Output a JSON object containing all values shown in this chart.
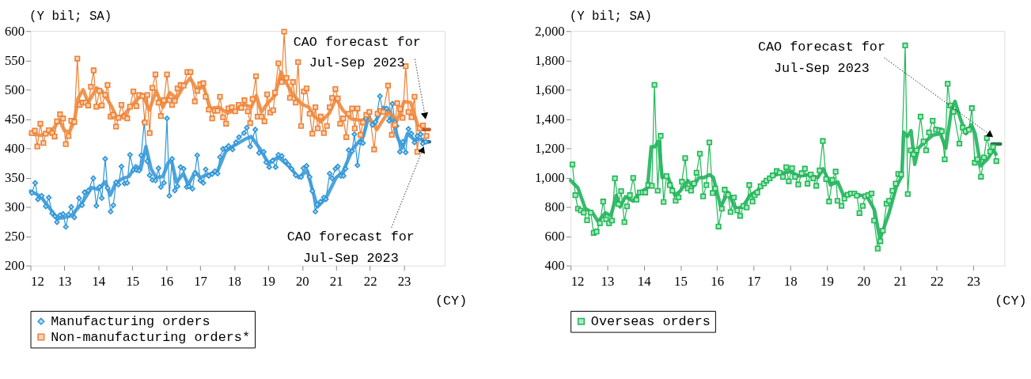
{
  "chart_data": [
    {
      "type": "line",
      "xlabel": "(CY)",
      "ylabel": "(Y bil; SA)",
      "xlim": [
        12,
        24.2
      ],
      "ylim": [
        200,
        600
      ],
      "xticks": [
        12,
        13,
        14,
        15,
        16,
        17,
        18,
        19,
        20,
        21,
        22,
        23
      ],
      "yticks": [
        200,
        250,
        300,
        350,
        400,
        450,
        500,
        550,
        600
      ],
      "grid": false,
      "legend": "bottom",
      "annotations": [
        {
          "text": "CAO forecast for\nJul-Sep 2023",
          "x": 23.62,
          "y": 455
        },
        {
          "text": "CAO forecast for\nJul-Sep 2023",
          "x": 23.55,
          "y": 398
        }
      ],
      "series": [
        {
          "name": "Manufacturing orders",
          "color": "#2e95d8",
          "marker": "diamond",
          "x": [
            12.04,
            12.14,
            12.22,
            12.33,
            12.45,
            12.54,
            12.64,
            12.72,
            12.78,
            12.87,
            12.96,
            13.04,
            13.12,
            13.2,
            13.29,
            13.43,
            13.52,
            13.59,
            13.7,
            13.85,
            13.94,
            14.03,
            14.1,
            14.2,
            14.27,
            14.36,
            14.44,
            14.52,
            14.59,
            14.68,
            14.77,
            14.85,
            14.93,
            15.03,
            15.12,
            15.2,
            15.26,
            15.35,
            15.44,
            15.51,
            15.59,
            15.68,
            15.77,
            15.84,
            15.93,
            16.02,
            16.09,
            16.17,
            16.25,
            16.33,
            16.42,
            16.51,
            16.6,
            16.67,
            16.77,
            16.84,
            16.91,
            17.0,
            17.09,
            17.16,
            17.25,
            17.35,
            17.43,
            17.51,
            17.58,
            17.67,
            17.76,
            17.83,
            17.95,
            18.05,
            18.14,
            18.29,
            18.37,
            18.47,
            18.62,
            18.73,
            18.87,
            18.94,
            19.03,
            19.13,
            19.22,
            19.3,
            19.4,
            19.51,
            19.6,
            19.69,
            19.81,
            19.97,
            20.04,
            20.13,
            20.22,
            20.3,
            20.39,
            20.44,
            20.54,
            20.64,
            20.7,
            20.81,
            20.88,
            20.98,
            21.05,
            21.14,
            21.22,
            21.28,
            21.37,
            21.47,
            21.54,
            21.63,
            21.72,
            21.79,
            21.88,
            21.98,
            22.07,
            22.16,
            22.29,
            22.37,
            22.49,
            22.56,
            22.66,
            22.73,
            22.78,
            22.88,
            22.96,
            23.05,
            23.13,
            23.22,
            23.31,
            23.39,
            23.49,
            23.55,
            23.64
          ],
          "values": [
            324,
            341,
            313,
            319,
            301,
            316,
            289,
            284,
            274,
            286,
            288,
            266,
            287,
            300,
            282,
            315,
            303,
            325,
            328,
            349,
            302,
            334,
            315,
            382,
            332,
            292,
            303,
            342,
            338,
            369,
            340,
            341,
            389,
            363,
            363,
            362,
            388,
            445,
            378,
            354,
            346,
            345,
            366,
            334,
            341,
            451,
            319,
            382,
            328,
            335,
            368,
            365,
            334,
            335,
            331,
            357,
            388,
            345,
            341,
            364,
            353,
            356,
            361,
            357,
            385,
            399,
            400,
            404,
            398,
            410,
            419,
            426,
            435,
            403,
            432,
            392,
            394,
            376,
            368,
            379,
            368,
            389,
            387,
            378,
            372,
            365,
            354,
            351,
            366,
            370,
            351,
            327,
            292,
            304,
            309,
            316,
            313,
            357,
            349,
            365,
            369,
            353,
            353,
            365,
            397,
            395,
            424,
            371,
            410,
            409,
            451,
            462,
            440,
            445,
            489,
            463,
            468,
            447,
            476,
            445,
            438,
            394,
            411,
            393,
            433,
            425,
            410,
            421,
            424,
            408,
            411
          ]
        },
        {
          "name": "Non-manufacturing orders*",
          "color": "#ee8033",
          "marker": "square",
          "x": [
            12.04,
            12.13,
            12.2,
            12.29,
            12.38,
            12.45,
            12.54,
            12.64,
            12.71,
            12.78,
            12.87,
            12.96,
            13.04,
            13.12,
            13.2,
            13.29,
            13.38,
            13.45,
            13.54,
            13.62,
            13.7,
            13.78,
            13.86,
            13.94,
            14.03,
            14.1,
            14.2,
            14.27,
            14.36,
            14.44,
            14.52,
            14.59,
            14.68,
            14.77,
            14.85,
            14.93,
            15.03,
            15.12,
            15.2,
            15.3,
            15.37,
            15.44,
            15.51,
            15.59,
            15.68,
            15.77,
            15.84,
            15.93,
            16.02,
            16.09,
            16.17,
            16.25,
            16.33,
            16.42,
            16.51,
            16.62,
            16.71,
            16.84,
            16.91,
            17.0,
            17.09,
            17.16,
            17.25,
            17.35,
            17.43,
            17.51,
            17.58,
            17.67,
            17.76,
            17.83,
            17.93,
            18.03,
            18.13,
            18.21,
            18.3,
            18.4,
            18.47,
            18.54,
            18.64,
            18.69,
            18.8,
            18.89,
            18.97,
            19.06,
            19.15,
            19.2,
            19.3,
            19.4,
            19.47,
            19.54,
            19.64,
            19.73,
            19.81,
            19.88,
            19.97,
            20.05,
            20.13,
            20.22,
            20.3,
            20.39,
            20.46,
            20.55,
            20.64,
            20.73,
            20.81,
            20.88,
            20.98,
            21.05,
            21.12,
            21.21,
            21.3,
            21.37,
            21.47,
            21.55,
            21.63,
            21.72,
            21.79,
            21.89,
            21.98,
            22.12,
            22.22,
            22.31,
            22.39,
            22.53,
            22.64,
            22.73,
            22.8,
            22.89,
            22.96,
            23.05,
            23.13,
            23.22,
            23.31,
            23.39,
            23.46,
            23.56,
            23.66
          ],
          "values": [
            426,
            430,
            403,
            442,
            409,
            425,
            431,
            426,
            420,
            446,
            458,
            451,
            407,
            421,
            447,
            445,
            553,
            474,
            478,
            478,
            473,
            505,
            533,
            471,
            498,
            473,
            491,
            508,
            454,
            457,
            437,
            452,
            474,
            454,
            451,
            471,
            497,
            472,
            491,
            489,
            444,
            491,
            426,
            503,
            526,
            478,
            455,
            482,
            526,
            482,
            474,
            481,
            502,
            508,
            507,
            530,
            530,
            480,
            498,
            509,
            511,
            488,
            466,
            451,
            464,
            464,
            488,
            453,
            442,
            468,
            470,
            463,
            474,
            469,
            482,
            463,
            443,
            484,
            523,
            454,
            454,
            446,
            492,
            461,
            465,
            495,
            545,
            513,
            599,
            520,
            486,
            513,
            478,
            547,
            438,
            497,
            502,
            459,
            425,
            470,
            434,
            454,
            426,
            438,
            470,
            486,
            501,
            485,
            442,
            451,
            419,
            459,
            468,
            434,
            468,
            423,
            444,
            457,
            462,
            398,
            459,
            464,
            462,
            507,
            423,
            440,
            477,
            467,
            452,
            540,
            462,
            453,
            488,
            394,
            434,
            439,
            421
          ]
        },
        {
          "color": "#3a9ad9",
          "marker": "none",
          "x": [
            12.0,
            12.3,
            12.6,
            12.8,
            13.0,
            13.2,
            13.5,
            13.8,
            14.0,
            14.2,
            14.35,
            14.5,
            14.7,
            14.9,
            15.1,
            15.25,
            15.4,
            15.55,
            15.7,
            15.9,
            16.05,
            16.15,
            16.3,
            16.5,
            16.65,
            16.85,
            17.0,
            17.2,
            17.5,
            17.75,
            18.0,
            18.3,
            18.5,
            18.75,
            19.0,
            19.3,
            19.6,
            19.9,
            20.15,
            20.3,
            20.45,
            20.7,
            21.0,
            21.2,
            21.5,
            21.8,
            21.95,
            22.1,
            22.4,
            22.6,
            22.8,
            22.95,
            23.1,
            23.3,
            23.55
          ],
          "values": [
            327,
            318,
            295,
            280,
            282,
            285,
            305,
            333,
            330,
            343,
            320,
            340,
            348,
            352,
            370,
            365,
            403,
            365,
            350,
            352,
            375,
            380,
            342,
            357,
            338,
            360,
            350,
            355,
            360,
            395,
            405,
            415,
            420,
            400,
            375,
            385,
            370,
            350,
            362,
            330,
            300,
            315,
            350,
            360,
            400,
            420,
            452,
            440,
            470,
            462,
            420,
            400,
            425,
            415,
            415
          ]
        },
        {
          "color": "#ef8a3d",
          "marker": "none",
          "x": [
            12.0,
            12.3,
            12.6,
            12.85,
            13.0,
            13.15,
            13.3,
            13.4,
            13.55,
            13.7,
            13.95,
            14.1,
            14.25,
            14.4,
            14.55,
            14.8,
            15.05,
            15.3,
            15.5,
            15.7,
            15.9,
            16.1,
            16.3,
            16.5,
            16.7,
            16.9,
            17.1,
            17.3,
            17.55,
            17.8,
            18.05,
            18.3,
            18.5,
            18.65,
            18.8,
            19.0,
            19.2,
            19.38,
            19.55,
            19.75,
            20.0,
            20.2,
            20.35,
            20.55,
            20.8,
            21.0,
            21.2,
            21.45,
            21.7,
            22.0,
            22.2,
            22.4,
            22.55,
            22.8,
            23.0,
            23.2,
            23.4,
            23.55
          ],
          "values": [
            425,
            422,
            428,
            448,
            430,
            428,
            448,
            485,
            500,
            478,
            503,
            498,
            485,
            470,
            450,
            460,
            478,
            492,
            465,
            498,
            470,
            495,
            485,
            505,
            520,
            500,
            505,
            468,
            470,
            460,
            465,
            475,
            470,
            490,
            462,
            478,
            490,
            530,
            510,
            490,
            475,
            470,
            455,
            445,
            460,
            485,
            465,
            450,
            448,
            450,
            432,
            450,
            462,
            448,
            480,
            478,
            440,
            432
          ]
        },
        {
          "color": "#1f5f8a",
          "marker": "none",
          "x": [
            23.56,
            23.75
          ],
          "values": [
            411,
            411
          ]
        },
        {
          "color": "#b8501a",
          "marker": "none",
          "x": [
            23.56,
            23.75
          ],
          "values": [
            432,
            432
          ]
        }
      ]
    },
    {
      "type": "line",
      "xlabel": "(CY)",
      "ylabel": "(Y bil; SA)",
      "xlim": [
        12,
        23.85
      ],
      "ylim": [
        400,
        2000
      ],
      "xticks": [
        12,
        13,
        14,
        15,
        16,
        17,
        18,
        19,
        20,
        21,
        22,
        23
      ],
      "yticks": [
        400,
        600,
        800,
        {
          "value": 1000,
          "label": "1,000"
        },
        {
          "value": 1200,
          "label": "1,200"
        },
        {
          "value": 1400,
          "label": "1,400"
        },
        {
          "value": 1600,
          "label": "1,600"
        },
        {
          "value": 1800,
          "label": "1,800"
        },
        {
          "value": 2000,
          "label": "2,000"
        }
      ],
      "grid": false,
      "legend": "bottom",
      "annotations": [
        {
          "text": "CAO forecast for\nJul-Sep 2023",
          "x": 23.47,
          "y": 1290
        }
      ],
      "series": [
        {
          "name": "Overseas orders",
          "color": "#1db954",
          "marker": "square",
          "x": [
            12.05,
            12.13,
            12.2,
            12.28,
            12.36,
            12.45,
            12.55,
            12.63,
            12.71,
            12.8,
            12.89,
            12.97,
            13.05,
            13.13,
            13.21,
            13.31,
            13.38,
            13.47,
            13.54,
            13.62,
            13.71,
            13.8,
            13.89,
            13.97,
            14.04,
            14.12,
            14.22,
            14.29,
            14.38,
            14.46,
            14.54,
            14.62,
            14.71,
            14.78,
            14.87,
            14.95,
            15.04,
            15.13,
            15.2,
            15.29,
            15.37,
            15.44,
            15.53,
            15.62,
            15.71,
            15.79,
            15.88,
            15.95,
            16.04,
            16.13,
            16.21,
            16.3,
            16.37,
            16.46,
            16.55,
            16.63,
            16.72,
            16.81,
            16.88,
            16.97,
            17.03,
            17.1,
            17.19,
            17.28,
            17.35,
            17.44,
            17.52,
            17.63,
            17.71,
            17.8,
            17.89,
            17.96,
            18.05,
            18.13,
            18.22,
            18.31,
            18.4,
            18.47,
            18.56,
            18.63,
            18.71,
            18.8,
            18.89,
            18.98,
            19.06,
            19.15,
            19.24,
            19.29,
            19.4,
            19.48,
            19.57,
            19.66,
            19.75,
            19.82,
            19.89,
            19.98,
            20.05,
            20.13,
            20.22,
            20.29,
            20.39,
            20.46,
            20.53,
            20.63,
            20.7,
            20.79,
            20.88,
            20.95,
            21.03,
            21.14,
            21.21,
            21.29,
            21.37,
            21.45,
            21.56,
            21.64,
            21.71,
            21.79,
            21.89,
            21.98,
            22.07,
            22.14,
            22.22,
            22.3,
            22.37,
            22.46,
            22.62,
            22.71,
            22.79,
            22.88,
            22.96,
            23.04,
            23.11,
            23.21,
            23.29,
            23.37,
            23.46,
            23.54,
            23.63
          ],
          "values": [
            1090,
            880,
            788,
            776,
            761,
            709,
            761,
            623,
            632,
            689,
            837,
            715,
            689,
            707,
            995,
            819,
            908,
            696,
            804,
            880,
            998,
            849,
            898,
            898,
            898,
            949,
            944,
            1633,
            911,
            1285,
            834,
            1010,
            949,
            911,
            842,
            865,
            972,
            1133,
            926,
            911,
            960,
            1033,
            1163,
            872,
            949,
            1240,
            895,
            926,
            666,
            788,
            918,
            883,
            765,
            865,
            776,
            739,
            807,
            796,
            949,
            837,
            880,
            898,
            941,
            960,
            979,
            995,
            1015,
            1045,
            1033,
            1005,
            1071,
            975,
            1064,
            1005,
            953,
            1030,
            1061,
            959,
            1021,
            995,
            944,
            1049,
            1250,
            990,
            837,
            984,
            1041,
            842,
            807,
            857,
            883,
            892,
            892,
            877,
            758,
            807,
            872,
            880,
            892,
            707,
            516,
            566,
            638,
            822,
            842,
            911,
            959,
            1025,
            1021,
            1902,
            888,
            1186,
            1159,
            1186,
            1416,
            1247,
            1186,
            1308,
            1388,
            1327,
            1324,
            1316,
            1125,
            1640,
            1492,
            1449,
            1232,
            1342,
            1316,
            1327,
            1474,
            1102,
            1125,
            1006,
            1137,
            1270,
            1178,
            1209,
            1113
          ]
        },
        {
          "color": "#21b35c",
          "marker": "none",
          "x": [
            12.0,
            12.2,
            12.4,
            12.6,
            12.75,
            12.95,
            13.1,
            13.25,
            13.35,
            13.5,
            13.7,
            13.9,
            14.1,
            14.2,
            14.3,
            14.4,
            14.5,
            14.65,
            14.85,
            15.0,
            15.2,
            15.35,
            15.5,
            15.65,
            15.8,
            15.9,
            16.1,
            16.3,
            16.5,
            16.7,
            16.9,
            17.1,
            17.3,
            17.5,
            17.75,
            18.0,
            18.25,
            18.5,
            18.75,
            18.9,
            19.1,
            19.3,
            19.45,
            19.7,
            19.9,
            20.1,
            20.3,
            20.45,
            20.7,
            20.9,
            21.05,
            21.1,
            21.2,
            21.3,
            21.4,
            21.5,
            21.7,
            21.9,
            22.1,
            22.25,
            22.4,
            22.5,
            22.65,
            22.8,
            22.95,
            23.05,
            23.2,
            23.4,
            23.55,
            23.62
          ],
          "values": [
            980,
            930,
            790,
            760,
            700,
            760,
            740,
            880,
            800,
            870,
            840,
            900,
            930,
            1210,
            1210,
            1250,
            1000,
            1010,
            880,
            910,
            980,
            940,
            1000,
            1000,
            1020,
            1000,
            800,
            900,
            790,
            800,
            880,
            910,
            970,
            1010,
            1030,
            1040,
            1010,
            1020,
            1000,
            1060,
            950,
            970,
            880,
            890,
            880,
            870,
            780,
            580,
            760,
            940,
            1010,
            1310,
            1280,
            1320,
            1090,
            1200,
            1250,
            1290,
            1300,
            1200,
            1460,
            1520,
            1400,
            1300,
            1360,
            1300,
            1080,
            1130,
            1190,
            1160
          ]
        },
        {
          "color": "#14683a",
          "marker": "none",
          "x": [
            23.51,
            23.74
          ],
          "values": [
            1229,
            1229
          ]
        }
      ]
    }
  ]
}
